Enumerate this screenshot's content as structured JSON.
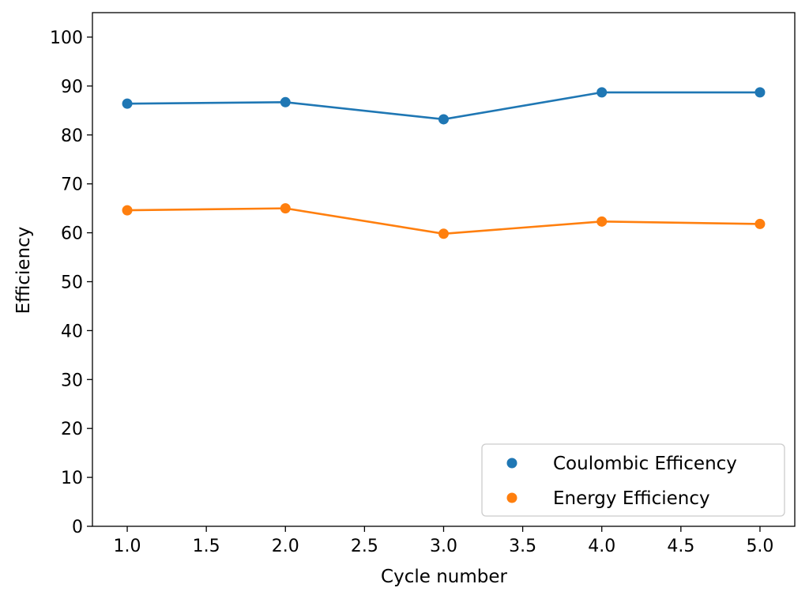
{
  "chart_data": {
    "type": "line",
    "title": "",
    "xlabel": "Cycle number",
    "ylabel": "Efficiency",
    "xlim": [
      0.78,
      5.22
    ],
    "ylim": [
      0,
      105
    ],
    "x_ticks": [
      "1.0",
      "1.5",
      "2.0",
      "2.5",
      "3.0",
      "3.5",
      "4.0",
      "4.5",
      "5.0"
    ],
    "y_ticks": [
      "0",
      "10",
      "20",
      "30",
      "40",
      "50",
      "60",
      "70",
      "80",
      "90",
      "100"
    ],
    "grid": false,
    "legend_position": "bottom-right",
    "series": [
      {
        "name": "Coulombic Efficency",
        "color": "#1f77b4",
        "x": [
          1,
          2,
          3,
          4,
          5
        ],
        "y": [
          86.4,
          86.7,
          83.2,
          88.7,
          88.7
        ]
      },
      {
        "name": "Energy Efficiency",
        "color": "#ff7f0e",
        "x": [
          1,
          2,
          3,
          4,
          5
        ],
        "y": [
          64.6,
          65.0,
          59.8,
          62.3,
          61.8
        ]
      }
    ]
  }
}
